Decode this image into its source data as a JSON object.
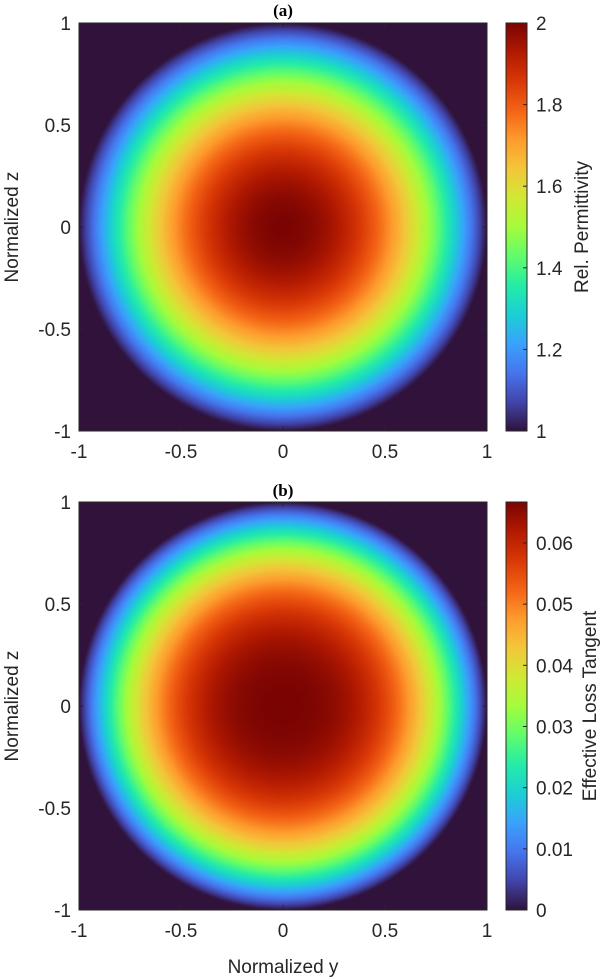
{
  "chart_data": [
    {
      "type": "heatmap",
      "title": "(a)",
      "xlabel": "",
      "ylabel": "Normalized z",
      "xlim": [
        -1,
        1
      ],
      "ylim": [
        -1,
        1
      ],
      "xticks": [
        "-1",
        "-0.5",
        "0",
        "0.5",
        "1"
      ],
      "yticks": [
        "-1",
        "-0.5",
        "0",
        "0.5",
        "1"
      ],
      "colorbar": {
        "label": "Rel. Permittivity",
        "range": [
          1,
          2
        ],
        "ticks": [
          "1",
          "1.2",
          "1.4",
          "1.6",
          "1.8",
          "2"
        ]
      },
      "field": {
        "shape": "radial",
        "support_radius": 1,
        "center_value": 2,
        "edge_value": 1,
        "outside_value": 1,
        "profile_exponent": 2
      }
    },
    {
      "type": "heatmap",
      "title": "(b)",
      "xlabel": "Normalized y",
      "ylabel": "Normalized z",
      "xlim": [
        -1,
        1
      ],
      "ylim": [
        -1,
        1
      ],
      "xticks": [
        "-1",
        "-0.5",
        "0",
        "0.5",
        "1"
      ],
      "yticks": [
        "-1",
        "-0.5",
        "0",
        "0.5",
        "1"
      ],
      "colorbar": {
        "label": "Effective Loss Tangent",
        "range": [
          0,
          0.0667
        ],
        "ticks": [
          "0",
          "0.01",
          "0.02",
          "0.03",
          "0.04",
          "0.05",
          "0.06"
        ]
      },
      "field": {
        "shape": "radial",
        "support_radius": 1,
        "center_value": 0.0667,
        "edge_value": 0,
        "outside_value": 0,
        "profile_exponent": 2.6
      }
    }
  ],
  "colormap": [
    "#30123b",
    "#4145ab",
    "#4675ed",
    "#39a2fc",
    "#1bcfd4",
    "#24eca6",
    "#61fc6c",
    "#a4fc3b",
    "#d1e834",
    "#f3c63a",
    "#fe9b2d",
    "#f36315",
    "#d93806",
    "#b11901",
    "#7a0402"
  ]
}
